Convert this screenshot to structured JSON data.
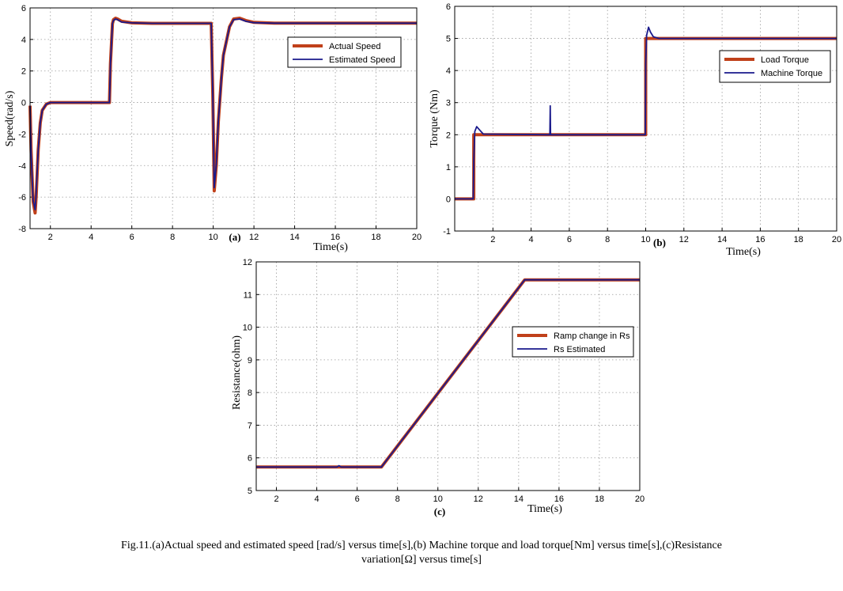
{
  "chart_data": [
    {
      "type": "line",
      "panel_label": "(a)",
      "xlabel": "Time(s)",
      "ylabel": "Speed(rad/s)",
      "xlim": [
        1,
        20
      ],
      "ylim": [
        -8,
        6
      ],
      "xticks": [
        "2",
        "4",
        "6",
        "8",
        "10",
        "12",
        "14",
        "16",
        "18",
        "20"
      ],
      "yticks": [
        "-8",
        "-6",
        "-4",
        "-2",
        "0",
        "2",
        "4",
        "6"
      ],
      "grid": true,
      "legend_position": "top-right",
      "series": [
        {
          "name": "Actual Speed",
          "color": "#c0401a",
          "x": [
            1.0,
            1.05,
            1.15,
            1.25,
            1.3,
            1.4,
            1.5,
            1.6,
            1.8,
            2.0,
            2.5,
            4.9,
            4.95,
            5.05,
            5.1,
            5.2,
            5.3,
            5.5,
            6.0,
            7.0,
            9.9,
            9.98,
            10.05,
            10.15,
            10.25,
            10.4,
            10.5,
            10.8,
            11.0,
            11.3,
            11.6,
            12.0,
            13.0,
            20.0
          ],
          "y": [
            -0.2,
            -3.0,
            -6.3,
            -7.0,
            -6.0,
            -3.0,
            -1.3,
            -0.5,
            -0.1,
            0.0,
            0.0,
            0.0,
            2.5,
            5.0,
            5.25,
            5.35,
            5.3,
            5.15,
            5.05,
            5.02,
            5.02,
            0.5,
            -5.6,
            -4.0,
            -1.2,
            1.5,
            3.0,
            4.8,
            5.3,
            5.35,
            5.2,
            5.08,
            5.03,
            5.03
          ]
        },
        {
          "name": "Estimated Speed",
          "color": "#1a1a8c",
          "x": [
            1.0,
            1.05,
            1.15,
            1.25,
            1.3,
            1.4,
            1.5,
            1.6,
            1.8,
            2.0,
            2.5,
            4.9,
            4.95,
            5.05,
            5.1,
            5.2,
            5.3,
            5.5,
            6.0,
            7.0,
            9.9,
            9.98,
            10.05,
            10.15,
            10.25,
            10.4,
            10.5,
            10.8,
            11.0,
            11.3,
            11.6,
            12.0,
            13.0,
            20.0
          ],
          "y": [
            -0.2,
            -3.2,
            -6.2,
            -6.8,
            -5.8,
            -3.0,
            -1.3,
            -0.5,
            -0.1,
            0.0,
            0.0,
            0.0,
            2.5,
            5.0,
            5.2,
            5.3,
            5.25,
            5.1,
            5.05,
            5.02,
            5.02,
            0.5,
            -5.4,
            -3.9,
            -1.2,
            1.5,
            3.0,
            4.8,
            5.25,
            5.3,
            5.15,
            5.06,
            5.03,
            5.03
          ]
        }
      ]
    },
    {
      "type": "line",
      "panel_label": "(b)",
      "xlabel": "Time(s)",
      "ylabel": "Torque (Nm)",
      "xlim": [
        0,
        20
      ],
      "ylim": [
        -1,
        6
      ],
      "xticks": [
        "2",
        "4",
        "6",
        "8",
        "10",
        "12",
        "14",
        "16",
        "18",
        "20"
      ],
      "yticks": [
        "-1",
        "0",
        "1",
        "2",
        "3",
        "4",
        "5",
        "6"
      ],
      "grid": true,
      "legend_position": "top-right",
      "series": [
        {
          "name": "Load Torque",
          "color": "#c0401a",
          "x": [
            0.0,
            1.0,
            1.0,
            10.0,
            10.0,
            20.0
          ],
          "y": [
            0.0,
            0.0,
            2.0,
            2.0,
            5.0,
            5.0
          ]
        },
        {
          "name": "Machine Torque",
          "color": "#1a1a8c",
          "x": [
            0.0,
            0.97,
            1.0,
            1.05,
            1.15,
            1.3,
            1.5,
            4.98,
            5.0,
            5.02,
            5.05,
            9.98,
            10.0,
            10.05,
            10.15,
            10.25,
            10.4,
            10.7,
            20.0
          ],
          "y": [
            0.0,
            0.0,
            1.2,
            2.1,
            2.25,
            2.15,
            2.02,
            2.0,
            2.9,
            2.0,
            2.0,
            2.0,
            4.2,
            5.1,
            5.35,
            5.2,
            5.05,
            5.0,
            5.0
          ]
        }
      ]
    },
    {
      "type": "line",
      "panel_label": "(c)",
      "xlabel": "Time(s)",
      "ylabel": "Resistance(ohm)",
      "xlim": [
        1,
        20
      ],
      "ylim": [
        5,
        12
      ],
      "xticks": [
        "2",
        "4",
        "6",
        "8",
        "10",
        "12",
        "14",
        "16",
        "18",
        "20"
      ],
      "yticks": [
        "5",
        "6",
        "7",
        "8",
        "9",
        "10",
        "11",
        "12"
      ],
      "grid": true,
      "legend_position": "center-right",
      "series": [
        {
          "name": "Ramp change in Rs",
          "color": "#c0401a",
          "x": [
            1.0,
            7.2,
            14.3,
            20.0
          ],
          "y": [
            5.72,
            5.72,
            11.45,
            11.45
          ]
        },
        {
          "name": "Rs Estimated",
          "color": "#1a1a8c",
          "x": [
            1.0,
            5.0,
            5.1,
            5.2,
            7.2,
            14.3,
            20.0
          ],
          "y": [
            5.72,
            5.72,
            5.76,
            5.72,
            5.72,
            11.45,
            11.45
          ]
        }
      ]
    }
  ],
  "caption": {
    "line1": "Fig.11.(a)Actual speed and estimated speed [rad/s] versus time[s],(b) Machine torque and load torque[Nm] versus time[s],(c)Resistance",
    "line2": "variation[Ω] versus time[s]"
  }
}
